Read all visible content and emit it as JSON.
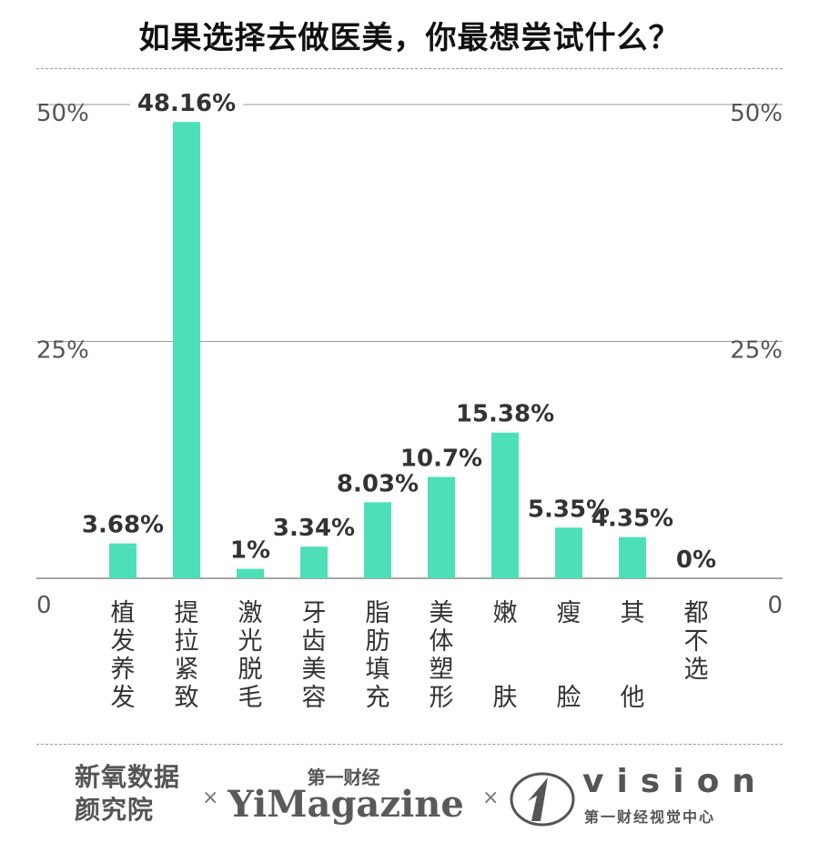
{
  "chart_data": {
    "type": "bar",
    "title": "如果选择去做医美，你最想尝试什么？",
    "categories": [
      "植发养发",
      "提拉紧致",
      "激光脱毛",
      "牙齿美容",
      "脂肪填充",
      "美体塑形",
      "嫩肤",
      "瘦脸",
      "其他",
      "都不选"
    ],
    "values": [
      3.68,
      48.16,
      1,
      3.34,
      8.03,
      10.7,
      15.38,
      5.35,
      4.35,
      0
    ],
    "value_labels": [
      "3.68%",
      "48.16%",
      "1%",
      "3.34%",
      "8.03%",
      "10.7%",
      "15.38%",
      "5.35%",
      "4.35%",
      "0%"
    ],
    "category_label_lines": [
      [
        "植",
        "发",
        "养",
        "发"
      ],
      [
        "提",
        "拉",
        "紧",
        "致"
      ],
      [
        "激",
        "光",
        "脱",
        "毛"
      ],
      [
        "牙",
        "齿",
        "美",
        "容"
      ],
      [
        "脂",
        "肪",
        "填",
        "充"
      ],
      [
        "美",
        "体",
        "塑",
        "形"
      ],
      [
        "嫩",
        "",
        "",
        "肤"
      ],
      [
        "瘦",
        "",
        "",
        "脸"
      ],
      [
        "其",
        "",
        "",
        "他"
      ],
      [
        "都",
        "不",
        "选",
        ""
      ]
    ],
    "yticks": [
      0,
      25,
      50
    ],
    "ytick_labels": [
      "0",
      "25%",
      "50%"
    ],
    "ylim": [
      0,
      50
    ],
    "grid": true,
    "bar_color": "#4de0b8"
  },
  "footer": {
    "logo1": "新氧数据颜究院",
    "separator": "×",
    "logo2_top": "第一财经",
    "logo2_main": "YiMagazine",
    "logo3_word": "vision",
    "logo3_sub": "第一财经视觉中心"
  }
}
